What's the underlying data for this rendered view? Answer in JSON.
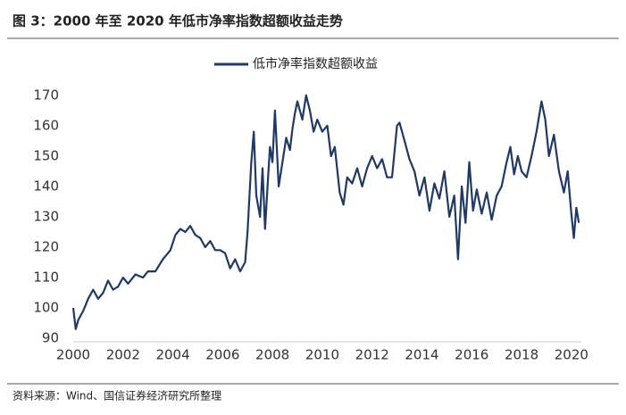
{
  "chart_data": {
    "type": "line",
    "title": "图 3：2000 年至 2020 年低市净率指数超额收益走势",
    "source": "资料来源：Wind、国信证券经济研究所整理",
    "series": [
      {
        "name": "低市净率指数超额收益",
        "color": "#1f3864",
        "x": [
          2000.0,
          2000.1,
          2000.2,
          2000.4,
          2000.6,
          2000.8,
          2001.0,
          2001.2,
          2001.4,
          2001.6,
          2001.8,
          2002.0,
          2002.2,
          2002.5,
          2002.8,
          2003.0,
          2003.3,
          2003.6,
          2003.9,
          2004.1,
          2004.3,
          2004.5,
          2004.7,
          2004.9,
          2005.1,
          2005.3,
          2005.5,
          2005.7,
          2005.9,
          2006.1,
          2006.3,
          2006.5,
          2006.7,
          2006.9,
          2007.0,
          2007.15,
          2007.25,
          2007.35,
          2007.5,
          2007.6,
          2007.7,
          2007.8,
          2007.9,
          2008.0,
          2008.1,
          2008.25,
          2008.4,
          2008.55,
          2008.7,
          2008.8,
          2008.9,
          2009.0,
          2009.2,
          2009.35,
          2009.5,
          2009.65,
          2009.8,
          2010.0,
          2010.2,
          2010.35,
          2010.5,
          2010.7,
          2010.85,
          2011.0,
          2011.2,
          2011.4,
          2011.6,
          2011.8,
          2012.0,
          2012.2,
          2012.4,
          2012.6,
          2012.8,
          2013.0,
          2013.1,
          2013.3,
          2013.5,
          2013.7,
          2013.9,
          2014.1,
          2014.3,
          2014.5,
          2014.7,
          2014.9,
          2015.1,
          2015.3,
          2015.45,
          2015.6,
          2015.75,
          2015.9,
          2016.05,
          2016.2,
          2016.4,
          2016.6,
          2016.8,
          2017.0,
          2017.2,
          2017.4,
          2017.55,
          2017.7,
          2017.85,
          2018.0,
          2018.2,
          2018.4,
          2018.6,
          2018.8,
          2018.95,
          2019.1,
          2019.3,
          2019.5,
          2019.7,
          2019.85,
          2020.0,
          2020.1,
          2020.2,
          2020.3
        ],
        "values": [
          100,
          93,
          96,
          99,
          103,
          106,
          103,
          105,
          109,
          106,
          107,
          110,
          108,
          111,
          110,
          112,
          112,
          116,
          119,
          124,
          126,
          125,
          127,
          124,
          123,
          120,
          122,
          119,
          119,
          118,
          113,
          116,
          112,
          115,
          125,
          148,
          158,
          137,
          130,
          146,
          126,
          140,
          153,
          148,
          165,
          140,
          148,
          156,
          152,
          159,
          164,
          168,
          162,
          170,
          165,
          158,
          162,
          158,
          160,
          150,
          153,
          138,
          134,
          143,
          141,
          146,
          140,
          146,
          150,
          146,
          149,
          143,
          143,
          160,
          161,
          155,
          149,
          145,
          137,
          143,
          132,
          141,
          136,
          145,
          130,
          137,
          116,
          140,
          128,
          148,
          132,
          139,
          131,
          138,
          129,
          137,
          140,
          148,
          153,
          144,
          150,
          145,
          143,
          150,
          158,
          168,
          162,
          150,
          157,
          145,
          138,
          145,
          131,
          123,
          133,
          128
        ]
      }
    ],
    "xlim": [
      2000,
      2020.4
    ],
    "ylim": [
      90,
      172
    ],
    "xticks": [
      2000,
      2002,
      2004,
      2006,
      2008,
      2010,
      2012,
      2014,
      2016,
      2018,
      2020
    ],
    "yticks": [
      90,
      100,
      110,
      120,
      130,
      140,
      150,
      160,
      170
    ]
  }
}
